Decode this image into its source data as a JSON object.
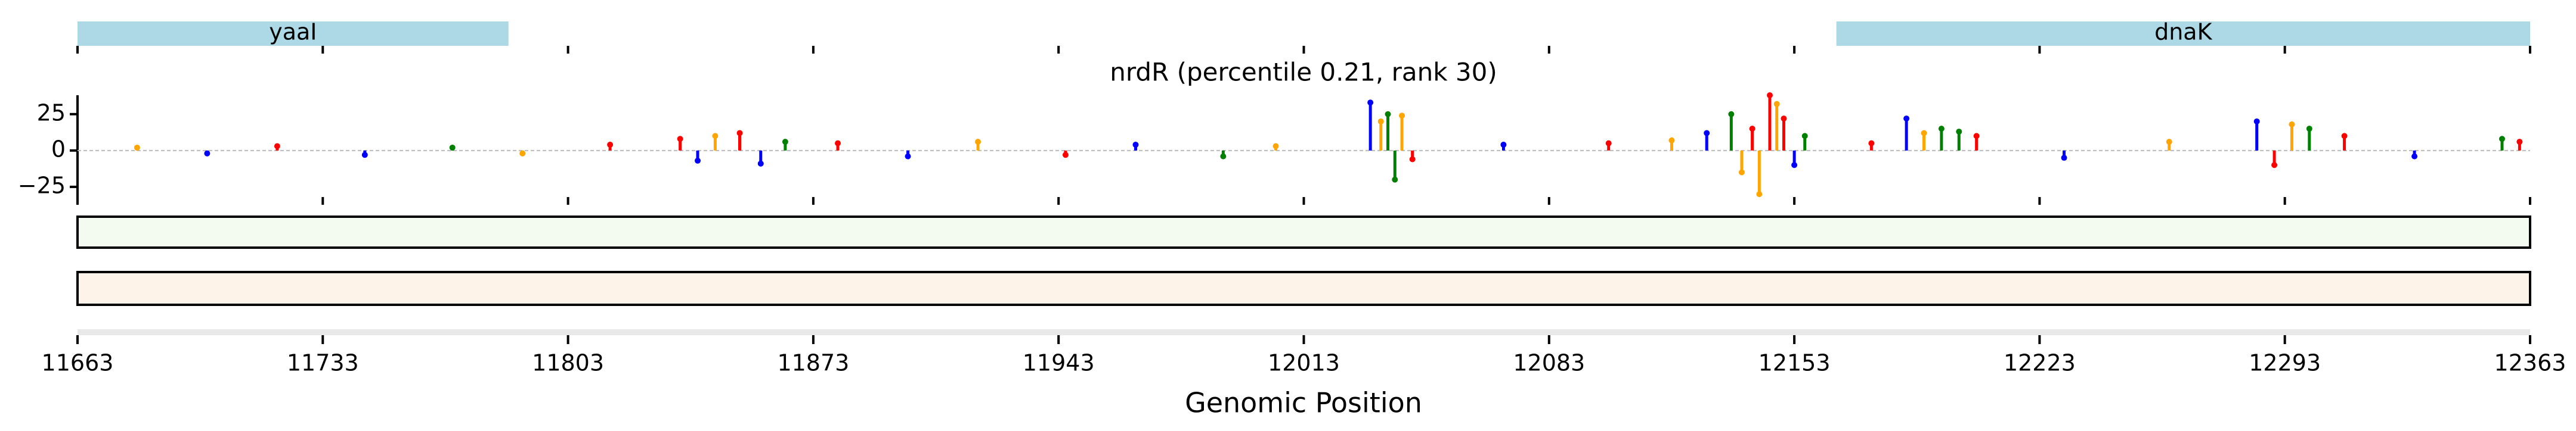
{
  "chart_data": {
    "type": "stem",
    "title": "nrdR (percentile 0.21, rank 30)",
    "xlabel": "Genomic Position",
    "xlim": [
      11663,
      12363
    ],
    "xticks": [
      11663,
      11733,
      11803,
      11873,
      11943,
      12013,
      12083,
      12153,
      12223,
      12293,
      12363
    ],
    "ylim": [
      -32,
      38
    ],
    "yticks": [
      25,
      0,
      {
        "value": -25,
        "label": "−25"
      }
    ],
    "genes": [
      {
        "name": "yaaI",
        "start": 11663,
        "end": 11786,
        "color": "#add8e6"
      },
      {
        "name": "dnaK",
        "start": 12165,
        "end": 12363,
        "color": "#add8e6"
      }
    ],
    "x": [
      11680,
      11700,
      11720,
      11745,
      11770,
      11790,
      11815,
      11835,
      11840,
      11845,
      11852,
      11858,
      11865,
      11880,
      11900,
      11920,
      11945,
      11965,
      11990,
      12005,
      12032,
      12035,
      12037,
      12039,
      12041,
      12044,
      12070,
      12100,
      12118,
      12128,
      12135,
      12138,
      12141,
      12143,
      12146,
      12148,
      12150,
      12153,
      12156,
      12175,
      12185,
      12190,
      12195,
      12200,
      12205,
      12230,
      12260,
      12285,
      12290,
      12295,
      12300,
      12310,
      12330,
      12355,
      12360
    ],
    "values": [
      2,
      -2,
      3,
      -3,
      2,
      -2,
      4,
      8,
      -7,
      10,
      12,
      -9,
      6,
      5,
      -4,
      6,
      -3,
      4,
      -4,
      3,
      33,
      20,
      25,
      -20,
      24,
      -6,
      4,
      5,
      7,
      12,
      25,
      -15,
      15,
      -30,
      38,
      32,
      22,
      -10,
      10,
      5,
      22,
      12,
      15,
      13,
      10,
      -5,
      6,
      20,
      -10,
      18,
      15,
      10,
      -4,
      8,
      6
    ],
    "colors": [
      "#ffa500",
      "#0000ff",
      "#ff0000",
      "#0000ff",
      "#008000",
      "#ffa500",
      "#ff0000",
      "#ff0000",
      "#0000ff",
      "#ffa500",
      "#ff0000",
      "#0000ff",
      "#008000",
      "#ff0000",
      "#0000ff",
      "#ffa500",
      "#ff0000",
      "#0000ff",
      "#008000",
      "#ffa500",
      "#0000ff",
      "#ffa500",
      "#008000",
      "#008000",
      "#ffa500",
      "#ff0000",
      "#0000ff",
      "#ff0000",
      "#ffa500",
      "#0000ff",
      "#008000",
      "#ffa500",
      "#ff0000",
      "#ffa500",
      "#ff0000",
      "#ffa500",
      "#ff0000",
      "#0000ff",
      "#008000",
      "#ff0000",
      "#0000ff",
      "#ffa500",
      "#008000",
      "#008000",
      "#ff0000",
      "#0000ff",
      "#ffa500",
      "#0000ff",
      "#ff0000",
      "#ffa500",
      "#008000",
      "#ff0000",
      "#0000ff",
      "#008000",
      "#ff0000"
    ]
  }
}
